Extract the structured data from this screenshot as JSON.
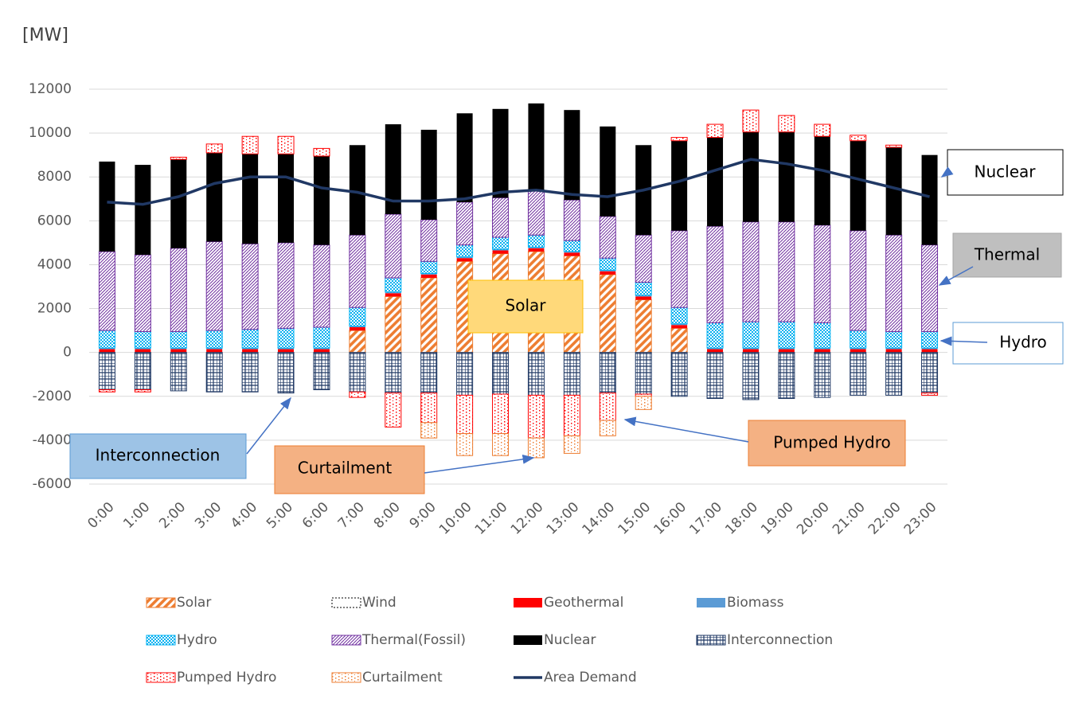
{
  "chart_data": {
    "type": "bar",
    "stacked": true,
    "y_unit": "[MW]",
    "categories": [
      "0:00",
      "1:00",
      "2:00",
      "3:00",
      "4:00",
      "5:00",
      "6:00",
      "7:00",
      "8:00",
      "9:00",
      "10:00",
      "11:00",
      "12:00",
      "13:00",
      "14:00",
      "15:00",
      "16:00",
      "17:00",
      "18:00",
      "19:00",
      "20:00",
      "21:00",
      "22:00",
      "23:00"
    ],
    "ylim": [
      -6000,
      12000
    ],
    "yticks": [
      -6000,
      -4000,
      -2000,
      0,
      2000,
      4000,
      6000,
      8000,
      10000,
      12000
    ],
    "grid": true,
    "series": [
      {
        "name": "Solar",
        "color": "#ed7d31",
        "pattern": "diagonal",
        "values": [
          0,
          0,
          0,
          0,
          0,
          0,
          0,
          1000,
          2550,
          3400,
          4150,
          4500,
          4600,
          4400,
          3550,
          2400,
          1100,
          0,
          0,
          0,
          0,
          0,
          0,
          0
        ]
      },
      {
        "name": "Wind",
        "color": "#000000",
        "pattern": "dotted-outline",
        "values": [
          0,
          0,
          0,
          0,
          0,
          0,
          0,
          0,
          0,
          0,
          0,
          0,
          0,
          0,
          0,
          0,
          0,
          0,
          0,
          0,
          0,
          0,
          0,
          0
        ]
      },
      {
        "name": "Geothermal",
        "color": "#ff0000",
        "pattern": "solid",
        "values": [
          150,
          150,
          150,
          150,
          150,
          150,
          150,
          150,
          150,
          150,
          150,
          150,
          150,
          150,
          150,
          150,
          150,
          150,
          150,
          150,
          150,
          150,
          150,
          150
        ]
      },
      {
        "name": "Biomass",
        "color": "#5b9bd5",
        "pattern": "solid",
        "values": [
          50,
          50,
          50,
          50,
          50,
          50,
          50,
          50,
          50,
          50,
          50,
          50,
          50,
          50,
          50,
          50,
          50,
          50,
          50,
          50,
          50,
          50,
          50,
          50
        ]
      },
      {
        "name": "Hydro",
        "color": "#00b0f0",
        "pattern": "checker",
        "values": [
          800,
          750,
          750,
          800,
          850,
          900,
          950,
          850,
          650,
          550,
          550,
          550,
          550,
          500,
          550,
          600,
          750,
          1150,
          1200,
          1200,
          1150,
          800,
          750,
          750
        ]
      },
      {
        "name": "Thermal(Fossil)",
        "color": "#7030a0",
        "pattern": "hatch",
        "values": [
          3600,
          3500,
          3800,
          4050,
          3900,
          3900,
          3750,
          3300,
          2900,
          1900,
          1950,
          1800,
          2050,
          1850,
          1900,
          2150,
          3500,
          4400,
          4550,
          4550,
          4450,
          4550,
          4400,
          3950
        ]
      },
      {
        "name": "Nuclear",
        "color": "#000000",
        "pattern": "solid",
        "values": [
          4100,
          4100,
          4050,
          4050,
          4100,
          4050,
          4050,
          4100,
          4100,
          4100,
          4050,
          4050,
          3950,
          4100,
          4100,
          4100,
          4100,
          4050,
          4100,
          4100,
          4050,
          4100,
          4000,
          4100
        ]
      },
      {
        "name": "Interconnection",
        "color": "#1f3864",
        "pattern": "grid",
        "values": [
          -1700,
          -1700,
          -1750,
          -1800,
          -1800,
          -1850,
          -1700,
          -1800,
          -1850,
          -1850,
          -1950,
          -1900,
          -1950,
          -1950,
          -1850,
          -1900,
          -2000,
          -2100,
          -2150,
          -2100,
          -2050,
          -1950,
          -1950,
          -1850
        ]
      },
      {
        "name": "Pumped Hydro",
        "color": "#ff0000",
        "pattern": "dots",
        "values": [
          -100,
          -100,
          100,
          400,
          800,
          800,
          350,
          -250,
          -1550,
          -1350,
          -1750,
          -1800,
          -1950,
          -1850,
          -1250,
          -100,
          150,
          600,
          1000,
          750,
          550,
          250,
          100,
          -100
        ]
      },
      {
        "name": "Curtailment",
        "color": "#ed7d31",
        "pattern": "dots",
        "values": [
          0,
          0,
          0,
          0,
          0,
          0,
          0,
          0,
          0,
          -700,
          -1000,
          -1000,
          -900,
          -800,
          -700,
          -600,
          0,
          0,
          0,
          0,
          0,
          0,
          0,
          0
        ]
      },
      {
        "name": "Area Demand",
        "color": "#203864",
        "type": "line",
        "values": [
          6850,
          6750,
          7100,
          7700,
          8000,
          8000,
          7500,
          7300,
          6900,
          6900,
          7000,
          7300,
          7400,
          7200,
          7100,
          7400,
          7800,
          8300,
          8800,
          8600,
          8300,
          7900,
          7500,
          7100
        ]
      }
    ],
    "annotations": [
      "Nuclear",
      "Thermal",
      "Hydro",
      "Solar",
      "Interconnection",
      "Pumped Hydro",
      "Curtailment"
    ]
  }
}
